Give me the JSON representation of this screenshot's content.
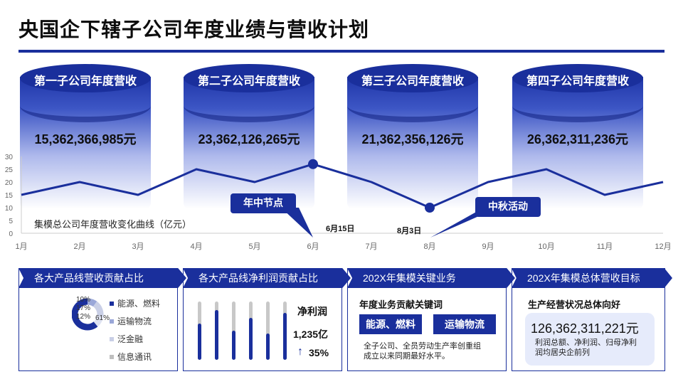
{
  "title": "央国企下辖子公司年度业绩与营收计划",
  "cylinders": [
    {
      "label": "第一子公司年度营收",
      "value": "15,362,366,985元"
    },
    {
      "label": "第二子公司年度营收",
      "value": "23,362,126,265元"
    },
    {
      "label": "第三子公司年度营收",
      "value": "21,362,356,126元"
    },
    {
      "label": "第四子公司年度营收",
      "value": "26,362,311,236元"
    }
  ],
  "chart_data": {
    "type": "line",
    "title": "集模总公司年度营收变化曲线（亿元）",
    "x": [
      "1月",
      "2月",
      "3月",
      "4月",
      "5月",
      "6月",
      "7月",
      "8月",
      "9月",
      "10月",
      "11月",
      "12月"
    ],
    "series": [
      {
        "values": [
          15,
          20,
          15,
          25,
          20,
          27,
          20,
          10,
          20,
          25,
          15,
          20
        ]
      }
    ],
    "ylim": [
      0,
      30
    ],
    "yticks": [
      "0",
      "5",
      "10",
      "15",
      "20",
      "25",
      "30"
    ],
    "highlight_points": [
      5,
      7
    ],
    "line_color": "#1a2f9c"
  },
  "callouts": {
    "mid_year": "年中节点",
    "mid_year_date": "6月15日",
    "mid_autumn": "中秋活动",
    "mid_autumn_date": "8月3日"
  },
  "panel1": {
    "title": "各大产品线营收贡献占比",
    "donut_labels": [
      "10%",
      "17%",
      "12%",
      "61%"
    ],
    "donut_values": [
      10,
      17,
      12,
      61
    ],
    "donut_colors": [
      "#9aa7d8",
      "#c9cfe6",
      "#dfe3f2",
      "#1a2f9c"
    ],
    "legend": [
      "能源、燃料",
      "运输物流",
      "泛金融",
      "信息通讯"
    ],
    "legend_colors": [
      "#1a2f9c",
      "#9aa7d8",
      "#c9cfe6",
      "#bfbfbf"
    ]
  },
  "panel2": {
    "title": "各大产品线净利润贡献占比",
    "bars": [
      0.62,
      0.85,
      0.5,
      0.72,
      0.45,
      0.8
    ],
    "metric_label": "净利润",
    "metric_value": "1,235亿",
    "growth_arrow": "↑",
    "growth": "35%"
  },
  "panel3": {
    "title": "202X年集模关键业务",
    "heading": "年度业务贡献关键词",
    "keywords": [
      "能源、燃料",
      "运输物流"
    ],
    "desc": [
      "全子公司、全员劳动生产率创重组",
      "成立以来同期最好水平。"
    ]
  },
  "panel4": {
    "title": "202X年集模总体营收目标",
    "heading": "生产经营状况总体向好",
    "goal_value": "126,362,311,221元",
    "goal_desc": [
      "利润总额、净利润、归母净利",
      "润均居央企前列"
    ]
  }
}
